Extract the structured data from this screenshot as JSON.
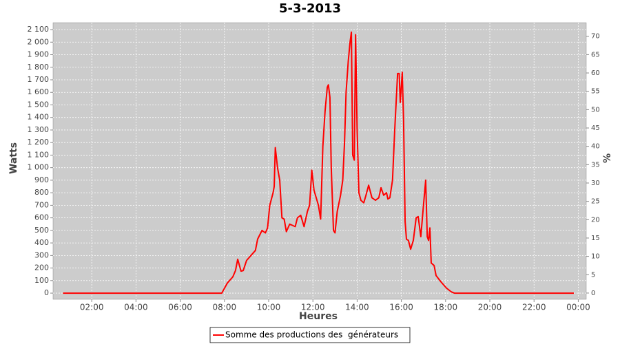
{
  "chart_data": {
    "type": "line",
    "title": "5-3-2013",
    "x_label": "Heures",
    "y_label": "Watts",
    "y2_label": "%",
    "x": [
      0.7,
      7.88,
      8.13,
      8.38,
      8.5,
      8.6,
      8.75,
      8.85,
      9.0,
      9.2,
      9.4,
      9.5,
      9.7,
      9.85,
      9.95,
      10.05,
      10.2,
      10.25,
      10.3,
      10.4,
      10.5,
      10.6,
      10.7,
      10.8,
      10.95,
      11.2,
      11.3,
      11.45,
      11.6,
      11.75,
      11.85,
      11.95,
      12.05,
      12.25,
      12.35,
      12.45,
      12.55,
      12.65,
      12.7,
      12.77,
      12.83,
      12.93,
      13.0,
      13.1,
      13.25,
      13.35,
      13.43,
      13.5,
      13.6,
      13.68,
      13.74,
      13.8,
      13.87,
      13.93,
      14.0,
      14.08,
      14.17,
      14.3,
      14.4,
      14.52,
      14.67,
      14.83,
      14.98,
      15.08,
      15.2,
      15.33,
      15.39,
      15.48,
      15.6,
      15.7,
      15.83,
      15.9,
      15.95,
      16.04,
      16.1,
      16.17,
      16.23,
      16.32,
      16.42,
      16.54,
      16.67,
      16.76,
      16.88,
      17.0,
      17.1,
      17.17,
      17.23,
      17.29,
      17.35,
      17.48,
      17.57,
      17.79,
      18.04,
      18.26,
      18.4,
      23.8
    ],
    "series": [
      {
        "name": "Somme des productions des  générateurs",
        "color": "#ff0000",
        "values": [
          0,
          0,
          80,
          130,
          180,
          270,
          175,
          180,
          260,
          300,
          340,
          430,
          500,
          480,
          520,
          700,
          800,
          850,
          1160,
          1000,
          900,
          600,
          590,
          490,
          550,
          530,
          600,
          620,
          530,
          650,
          700,
          980,
          820,
          700,
          590,
          1170,
          1450,
          1640,
          1660,
          1560,
          1000,
          500,
          480,
          650,
          780,
          900,
          1200,
          1600,
          1850,
          2000,
          2080,
          1100,
          1060,
          2060,
          1300,
          800,
          740,
          720,
          780,
          860,
          760,
          740,
          760,
          840,
          780,
          800,
          750,
          760,
          900,
          1300,
          1750,
          1750,
          1520,
          1760,
          1380,
          570,
          430,
          420,
          350,
          420,
          600,
          610,
          450,
          700,
          900,
          450,
          420,
          520,
          240,
          220,
          140,
          90,
          40,
          10,
          0,
          0
        ]
      }
    ],
    "xlim": [
      0.25,
      24.36
    ],
    "xticks": [
      {
        "value": 2,
        "label": "02:00"
      },
      {
        "value": 4,
        "label": "04:00"
      },
      {
        "value": 6,
        "label": "06:00"
      },
      {
        "value": 8,
        "label": "08:00"
      },
      {
        "value": 10,
        "label": "10:00"
      },
      {
        "value": 12,
        "label": "12:00"
      },
      {
        "value": 14,
        "label": "14:00"
      },
      {
        "value": 16,
        "label": "16:00"
      },
      {
        "value": 18,
        "label": "18:00"
      },
      {
        "value": 20,
        "label": "20:00"
      },
      {
        "value": 22,
        "label": "22:00"
      },
      {
        "value": 24,
        "label": "00:00"
      }
    ],
    "ylim": [
      -49,
      2155
    ],
    "yticks": [
      0,
      100,
      200,
      300,
      400,
      500,
      600,
      700,
      800,
      900,
      {
        "value": 1000,
        "label": "1 000"
      },
      {
        "value": 1100,
        "label": "1 100"
      },
      {
        "value": 1200,
        "label": "1 200"
      },
      {
        "value": 1300,
        "label": "1 300"
      },
      {
        "value": 1400,
        "label": "1 400"
      },
      {
        "value": 1500,
        "label": "1 500"
      },
      {
        "value": 1600,
        "label": "1 600"
      },
      {
        "value": 1700,
        "label": "1 700"
      },
      {
        "value": 1800,
        "label": "1 800"
      },
      {
        "value": 1900,
        "label": "1 900"
      },
      {
        "value": 2000,
        "label": "2 000"
      },
      {
        "value": 2100,
        "label": "2 100"
      }
    ],
    "y2lim": [
      -1.7,
      73.7
    ],
    "y2ticks": [
      0,
      5,
      10,
      15,
      20,
      25,
      30,
      35,
      40,
      45,
      50,
      55,
      60,
      65,
      70
    ],
    "grid": true,
    "legend": "bottom"
  }
}
